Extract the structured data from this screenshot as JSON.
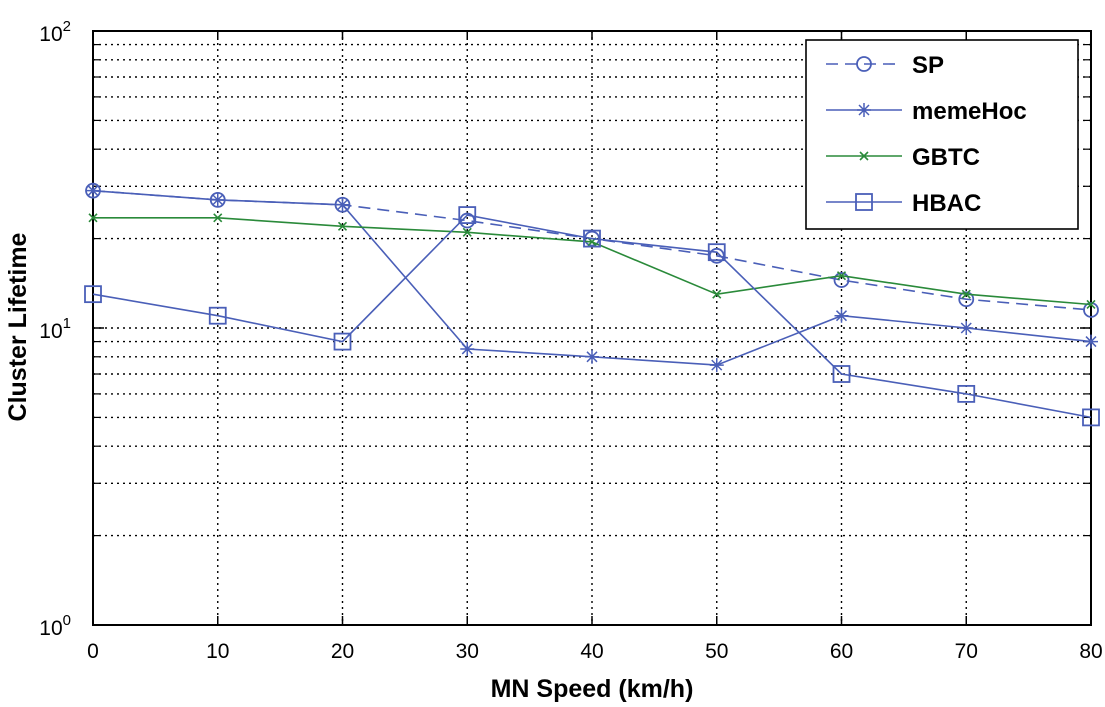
{
  "chart_data": {
    "type": "line",
    "title": "",
    "xlabel": "MN Speed (km/h)",
    "ylabel": "Cluster Lifetime",
    "x": [
      0,
      10,
      20,
      30,
      40,
      50,
      60,
      70,
      80
    ],
    "xlim": [
      0,
      80
    ],
    "ylim": [
      1,
      100
    ],
    "yscale": "log",
    "grid": true,
    "legend_position": "top-right",
    "xticks": [
      "0",
      "10",
      "20",
      "30",
      "40",
      "50",
      "60",
      "70",
      "80"
    ],
    "yticks": [
      {
        "base": "10",
        "exp": "0"
      },
      {
        "base": "10",
        "exp": "1"
      },
      {
        "base": "10",
        "exp": "2"
      }
    ],
    "series": [
      {
        "name": "SP",
        "color": "#4a5fb8",
        "dash": true,
        "marker": "circle",
        "values": [
          29,
          27,
          26,
          23,
          20,
          17.5,
          14.5,
          12.5,
          11.5
        ]
      },
      {
        "name": "memeHoc",
        "color": "#4a5fb8",
        "dash": false,
        "marker": "star",
        "values": [
          29,
          27,
          26,
          8.5,
          8,
          7.5,
          11,
          10,
          9
        ]
      },
      {
        "name": "GBTC",
        "color": "#2a8a3a",
        "dash": false,
        "marker": "x",
        "values": [
          23.5,
          23.5,
          22,
          21,
          19.5,
          13,
          15,
          13,
          12
        ]
      },
      {
        "name": "HBAC",
        "color": "#4a5fb8",
        "dash": false,
        "marker": "square",
        "values": [
          13,
          11,
          9,
          24,
          20,
          18,
          7,
          6,
          5
        ]
      }
    ]
  }
}
